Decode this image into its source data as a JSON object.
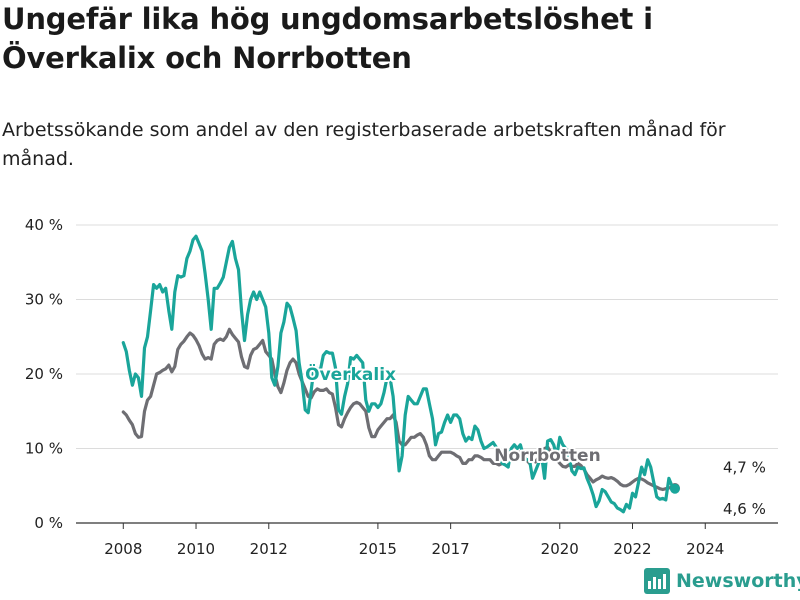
{
  "title": "Ungefär lika hög ungdomsarbetslöshet i Överkalix och Norrbotten",
  "subtitle": "Arbetssökande som andel av den registerbaserade arbetskraften månad för månad.",
  "brand": {
    "name": "Newsworthy",
    "color": "#2a9d8f"
  },
  "chart_data": {
    "type": "line",
    "title": "Ungefär lika hög ungdomsarbetslöshet i Överkalix och Norrbotten",
    "subtitle": "Arbetssökande som andel av den registerbaserade arbetskraften månad för månad.",
    "xlabel": "",
    "ylabel": "",
    "x_start": "2008-01",
    "x_step": "month",
    "xlim": [
      2006.7,
      2026.0
    ],
    "ylim": [
      0,
      40
    ],
    "yticks": [
      0,
      10,
      20,
      30,
      40
    ],
    "ytick_labels": [
      "0 %",
      "10 %",
      "20 %",
      "30 %",
      "40 %"
    ],
    "xticks": [
      2008,
      2010,
      2012,
      2015,
      2017,
      2020,
      2022,
      2024
    ],
    "xtick_labels": [
      "2008",
      "2010",
      "2012",
      "2015",
      "2017",
      "2020",
      "2022",
      "2024"
    ],
    "grid": "horizontal",
    "series": [
      {
        "name": "Överkalix",
        "color": "#1aa59a",
        "end_label": "4,6 %",
        "values": [
          24.2,
          23,
          20.5,
          18.5,
          20,
          19.5,
          17,
          23.5,
          25,
          28.5,
          32,
          31.5,
          32,
          31,
          31.5,
          28.5,
          26,
          31,
          33.2,
          33,
          33.2,
          35.5,
          36.5,
          38,
          38.5,
          37.5,
          36.5,
          33.5,
          30,
          26,
          31.5,
          31.5,
          32.2,
          33,
          35,
          37,
          37.8,
          35.5,
          34,
          28.5,
          24.5,
          28,
          30,
          31,
          30,
          31,
          30,
          29,
          25.5,
          19.5,
          18.5,
          21,
          25.5,
          27,
          29.5,
          29,
          27.5,
          25.8,
          21.5,
          19,
          15.2,
          14.8,
          17.8,
          21,
          20.7,
          20.5,
          22.5,
          23,
          22.8,
          22.8,
          20.8,
          15.2,
          14.6,
          17,
          18.7,
          22.2,
          22,
          22.5,
          22,
          21.5,
          16.5,
          15,
          16,
          16,
          15.5,
          16,
          17.5,
          19.5,
          19.5,
          17,
          12,
          7,
          9,
          14.5,
          17,
          16.5,
          16,
          16,
          17,
          18,
          18,
          16,
          14,
          10.5,
          12,
          12.2,
          13.5,
          14.5,
          13.5,
          14.5,
          14.5,
          14,
          12,
          11,
          11.5,
          11.2,
          13,
          12.5,
          11,
          10,
          10.2,
          10.5,
          10.8,
          10.2,
          9,
          8,
          7.8,
          7.5,
          10,
          10.5,
          10,
          10.5,
          9,
          8.5,
          8.5,
          6,
          7,
          8,
          9,
          6,
          11,
          11.2,
          10.5,
          9,
          11.5,
          10.5,
          10,
          9,
          7,
          6.5,
          7.5,
          7.3,
          7.4,
          6,
          5,
          3.8,
          2.2,
          3,
          4.5,
          4.2,
          3.5,
          2.8,
          2.6,
          2,
          1.8,
          1.5,
          2.5,
          2,
          4,
          3.5,
          5.5,
          7.5,
          6.5,
          8.5,
          7.5,
          5.5,
          3.5,
          3.2,
          3.3,
          3.1,
          6,
          5,
          4.6
        ]
      },
      {
        "name": "Norrbotten",
        "color": "#6e6e73",
        "end_label": "4,7 %",
        "values": [
          14.9,
          14.5,
          13.8,
          13.2,
          12,
          11.5,
          11.6,
          15,
          16.5,
          17,
          18.5,
          20,
          20.2,
          20.5,
          20.7,
          21.2,
          20.3,
          21,
          23.3,
          24,
          24.4,
          25,
          25.5,
          25.2,
          24.6,
          23.8,
          22.7,
          22,
          22.2,
          22,
          24,
          24.5,
          24.7,
          24.5,
          25,
          26,
          25.3,
          24.8,
          24.3,
          22.3,
          21,
          20.8,
          22.5,
          23.3,
          23.5,
          24,
          24.5,
          23,
          22.5,
          22,
          20,
          18.3,
          17.5,
          18.8,
          20.5,
          21.5,
          22,
          21.5,
          20,
          19,
          18,
          17,
          16.8,
          17.6,
          18,
          17.8,
          17.8,
          18,
          17.5,
          17.3,
          15.5,
          13.2,
          12.9,
          14,
          14.8,
          15.5,
          16,
          16.2,
          16,
          15.5,
          15,
          12.8,
          11.6,
          11.6,
          12.5,
          13,
          13.5,
          14,
          14,
          14.5,
          13.5,
          11,
          10.5,
          10.5,
          11,
          11.5,
          11.5,
          11.8,
          12,
          11.5,
          10.5,
          9,
          8.5,
          8.5,
          9,
          9.5,
          9.5,
          9.5,
          9.5,
          9.3,
          9,
          8.8,
          8,
          8,
          8.5,
          8.5,
          9,
          9,
          8.8,
          8.5,
          8.5,
          8.5,
          8,
          8,
          7.8,
          8,
          8.5,
          9.5,
          9.5,
          9.5,
          9.5,
          9.5,
          9,
          8.5,
          8,
          8.5,
          8.2,
          8.8,
          9.5,
          10,
          10.2,
          9.5,
          9,
          8.5,
          8,
          7.6,
          7.5,
          7.8,
          7.6,
          7.6,
          8,
          7.7,
          7.2,
          6.5,
          6,
          5.5,
          5.8,
          6,
          6.3,
          6.1,
          6,
          6.1,
          5.9,
          5.6,
          5.2,
          5,
          5,
          5.2,
          5.5,
          5.8,
          6,
          5.9,
          5.7,
          5.4,
          5.2,
          5,
          4.8,
          4.6,
          4.5,
          4.6,
          4.7,
          4.8,
          4.7
        ]
      }
    ]
  }
}
